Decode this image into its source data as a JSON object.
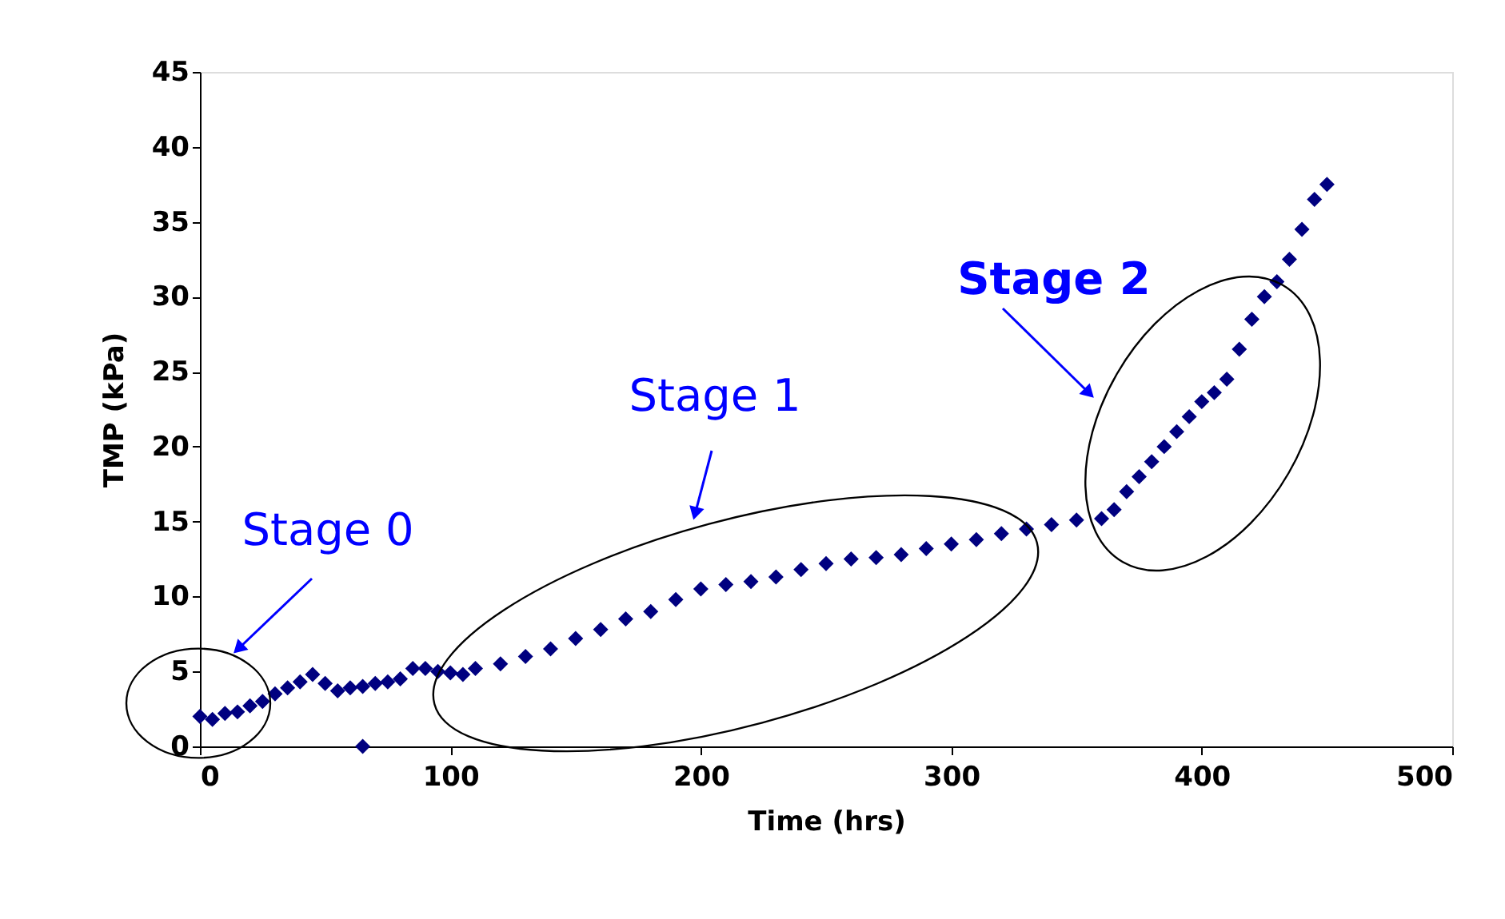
{
  "chart_data": {
    "type": "scatter",
    "xlabel": "Time (hrs)",
    "ylabel": "TMP (kPa)",
    "x": [
      0,
      5,
      10,
      15,
      20,
      25,
      30,
      35,
      40,
      45,
      50,
      55,
      60,
      65,
      65,
      70,
      75,
      80,
      85,
      90,
      95,
      100,
      105,
      110,
      120,
      130,
      140,
      150,
      160,
      170,
      180,
      190,
      200,
      210,
      220,
      230,
      240,
      250,
      260,
      270,
      280,
      290,
      300,
      310,
      320,
      330,
      340,
      350,
      360,
      365,
      370,
      375,
      380,
      385,
      390,
      395,
      400,
      405,
      410,
      415,
      420,
      425,
      430,
      435,
      440,
      445,
      450
    ],
    "series": [
      {
        "color": "#000080",
        "values": [
          2,
          1.8,
          2.2,
          2.3,
          2.7,
          3,
          3.5,
          3.9,
          4.3,
          4.8,
          4.2,
          3.7,
          3.9,
          4,
          0,
          4.2,
          4.3,
          4.5,
          5.2,
          5.2,
          5,
          4.9,
          4.8,
          5.2,
          5.5,
          6,
          6.5,
          7.2,
          7.8,
          8.5,
          9,
          9.8,
          10.5,
          10.8,
          11,
          11.3,
          11.8,
          12.2,
          12.5,
          12.6,
          12.8,
          13.2,
          13.5,
          13.8,
          14.2,
          14.5,
          14.8,
          15.1,
          15.2,
          15.8,
          17,
          18,
          19,
          20,
          21,
          22,
          23,
          23.6,
          24.5,
          26.5,
          28.5,
          30,
          31,
          32.5,
          34.5,
          36.5,
          37.5
        ]
      }
    ],
    "marker": "diamond",
    "grid": false,
    "xlim": [
      0,
      500
    ],
    "xticks": [
      0,
      100,
      200,
      300,
      400,
      500
    ],
    "ylim": [
      0,
      45
    ],
    "yticks": [
      0,
      5,
      10,
      15,
      20,
      25,
      30,
      35,
      40,
      45
    ],
    "annotations": [
      "Stage 0",
      "Stage 1",
      "Stage 2"
    ]
  }
}
